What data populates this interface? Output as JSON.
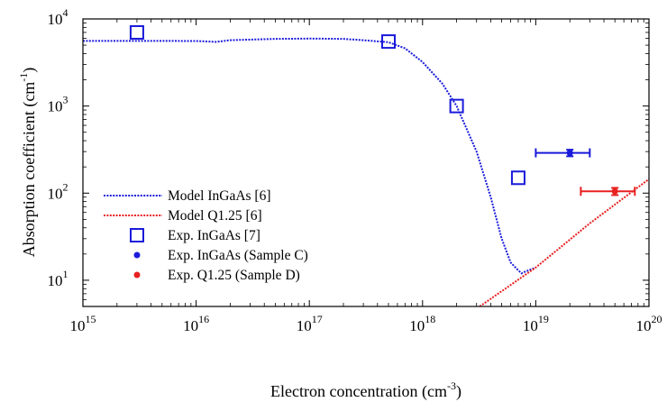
{
  "chart_data": {
    "type": "scatter",
    "title": "",
    "xlabel": "Electron concentration (cm",
    "xlabel_sup": "-3",
    "xlabel_close": ")",
    "ylabel": "Absorption coefficient (cm",
    "ylabel_sup": "-1",
    "ylabel_close": ")",
    "xscale": "log",
    "yscale": "log",
    "xlim": [
      1000000000000000.0,
      1e+20
    ],
    "ylim": [
      5,
      10000
    ],
    "grid": false,
    "legend_position": "bottom-left",
    "x_ticks": [
      {
        "base": "10",
        "exp": "15",
        "value": 1000000000000000.0
      },
      {
        "base": "10",
        "exp": "16",
        "value": 1e+16
      },
      {
        "base": "10",
        "exp": "17",
        "value": 1e+17
      },
      {
        "base": "10",
        "exp": "18",
        "value": 1e+18
      },
      {
        "base": "10",
        "exp": "19",
        "value": 1e+19
      },
      {
        "base": "10",
        "exp": "20",
        "value": 1e+20
      }
    ],
    "y_ticks": [
      {
        "base": "10",
        "exp": "1",
        "value": 10
      },
      {
        "base": "10",
        "exp": "2",
        "value": 100
      },
      {
        "base": "10",
        "exp": "3",
        "value": 1000
      },
      {
        "base": "10",
        "exp": "4",
        "value": 10000
      }
    ],
    "series": [
      {
        "name": "Model InGaAs [6]",
        "kind": "line",
        "style": "dotted",
        "color": "#1a1adb",
        "points": [
          [
            1000000000000000.0,
            5600
          ],
          [
            3000000000000000.0,
            5600
          ],
          [
            1e+16,
            5580
          ],
          [
            1.5e+16,
            5450
          ],
          [
            2e+16,
            5700
          ],
          [
            5e+16,
            5900
          ],
          [
            1e+17,
            5950
          ],
          [
            2e+17,
            5900
          ],
          [
            3e+17,
            5700
          ],
          [
            5e+17,
            5400
          ],
          [
            7e+17,
            4600
          ],
          [
            1e+18,
            3200
          ],
          [
            1.5e+18,
            1800
          ],
          [
            2e+18,
            1000
          ],
          [
            3e+18,
            300
          ],
          [
            4e+18,
            90
          ],
          [
            5e+18,
            30
          ],
          [
            6e+18,
            16
          ],
          [
            7e+18,
            13
          ],
          [
            7.5e+18,
            12
          ],
          [
            8e+18,
            12.5
          ],
          [
            1e+19,
            14
          ]
        ]
      },
      {
        "name": "Model Q1.25 [6]",
        "kind": "line",
        "style": "dotted",
        "color": "#e82020",
        "points": [
          [
            3.2e+18,
            5
          ],
          [
            1e+19,
            14
          ],
          [
            3e+19,
            45
          ],
          [
            1e+20,
            145
          ]
        ]
      },
      {
        "name": "Exp. InGaAs [7]",
        "kind": "marker",
        "marker": "open-square",
        "color": "#1a1adb",
        "points": [
          [
            3000000000000000.0,
            7000
          ],
          [
            5e+17,
            5500
          ],
          [
            2e+18,
            1000
          ],
          [
            7e+18,
            150
          ]
        ]
      },
      {
        "name": "Exp. InGaAs (Sample C)",
        "kind": "marker",
        "marker": "filled-circle",
        "color": "#1a1adb",
        "points": [
          [
            2e+19,
            290
          ]
        ],
        "x_error": [
          [
            1e+19,
            3e+19
          ]
        ],
        "y_error": [
          [
            265,
            315
          ]
        ]
      },
      {
        "name": "Exp. Q1.25 (Sample D)",
        "kind": "marker",
        "marker": "filled-circle",
        "color": "#e82020",
        "points": [
          [
            5e+19,
            105
          ]
        ],
        "x_error": [
          [
            2.5e+19,
            7.5e+19
          ]
        ],
        "y_error": [
          [
            95,
            115
          ]
        ]
      }
    ]
  }
}
